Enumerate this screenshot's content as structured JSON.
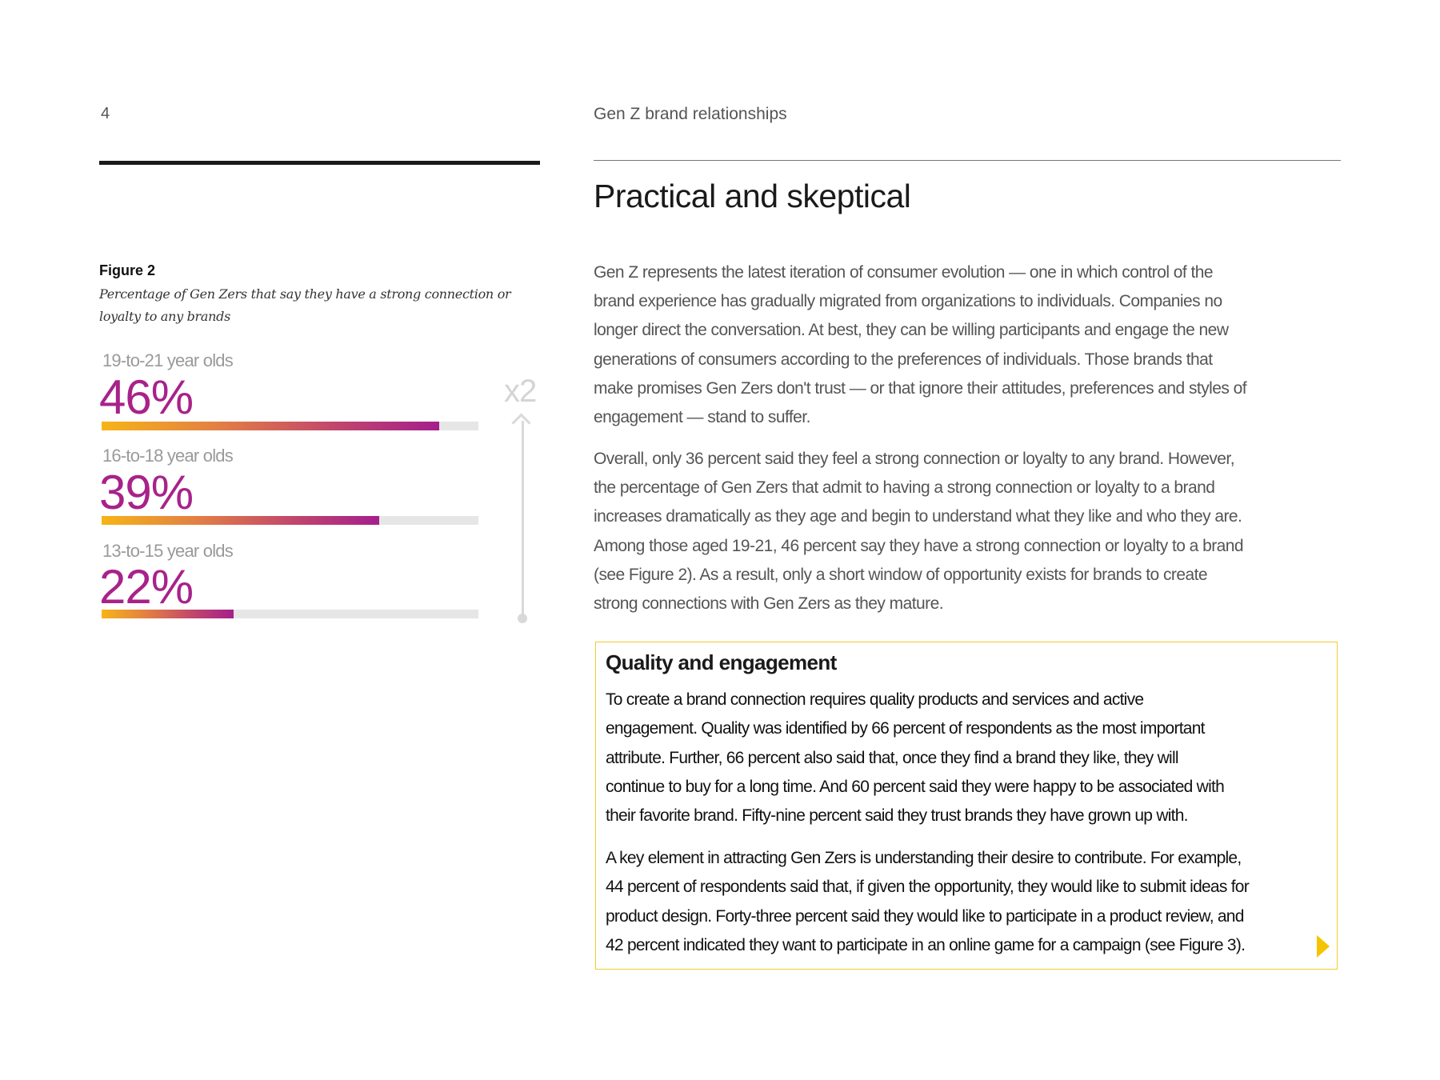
{
  "header": {
    "page_number": "4",
    "running_title": "Gen Z brand relationships"
  },
  "title": "Practical and skeptical",
  "figure": {
    "label": "Figure 2",
    "caption": "Percentage of Gen Zers that say they have a strong connection or loyalty to any brands",
    "multiplier": "x2",
    "groups": [
      {
        "label": "19-to-21 year olds",
        "value_text": "46%",
        "value": 46,
        "bar_fill": 0.896
      },
      {
        "label": "16-to-18 year olds",
        "value_text": "39%",
        "value": 39,
        "bar_fill": 0.737
      },
      {
        "label": "13-to-15 year olds",
        "value_text": "22%",
        "value": 22,
        "bar_fill": 0.35
      }
    ]
  },
  "body": {
    "paragraphs": [
      [
        "Gen Z represents the latest iteration of consumer evolution — one in which control of the",
        "brand experience has gradually migrated from organizations to individuals. Companies no",
        "longer direct the conversation. At best, they can be willing participants and engage the new",
        "generations of consumers according to the preferences of individuals. Those brands that",
        "make promises Gen Zers don't trust — or that ignore their attitudes, preferences and styles of",
        "engagement — stand to suffer."
      ],
      [
        "Overall, only 36 percent said they feel a strong connection or loyalty to any brand. However,",
        "the percentage of Gen Zers that admit to having a strong connection or loyalty to a brand",
        "increases dramatically as they age and begin to understand what they like and who they are.",
        "Among those aged 19-21, 46 percent say they have a strong connection or loyalty to a brand",
        "(see Figure 2). As a result, only a short window of opportunity exists for brands to create",
        "strong connections with Gen Zers as they mature."
      ]
    ]
  },
  "callout": {
    "heading": "Quality and engagement",
    "paragraphs": [
      [
        "To create a brand connection requires quality products and services and active",
        "engagement. Quality was identified by 66 percent of respondents as the most important",
        "attribute.  Further, 66 percent also said that, once they find a brand they like, they will",
        "continue to buy for a long time.  And 60 percent said they were happy to be associated with",
        "their favorite brand. Fifty-nine percent said they trust brands they have grown up with."
      ],
      [
        "A key element in attracting Gen Zers is understanding their desire to contribute. For example,",
        "44 percent of respondents said that, if given the opportunity, they would like to submit ideas for",
        "product design. Forty-three percent said they would like to participate in a product review, and",
        "42 percent indicated they want to participate in an online game for a campaign (see Figure 3)."
      ]
    ],
    "next_icon": "triangle-right-icon",
    "border_color": "#f3cc2a"
  },
  "colors": {
    "accent": "#a8228a",
    "gradient_start": "#f6b418",
    "gradient_end": "#a51f8c"
  }
}
